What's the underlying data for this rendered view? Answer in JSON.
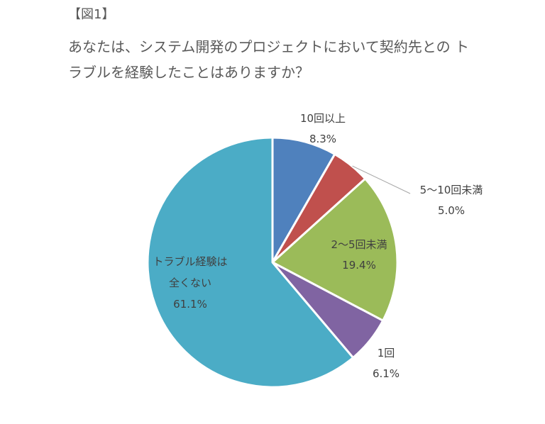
{
  "figure_label": "【図1】",
  "title_lines": [
    "あなたは、システム開発のプロジェクトにおいて契約先との ト",
    "ラブルを経験したことはありますか？"
  ],
  "chart_data": {
    "type": "pie",
    "start_angle_deg": 0,
    "direction": "clockwise",
    "slices": [
      {
        "name": "10回以上",
        "value": 8.3,
        "label": "8.3%",
        "color": "#4F81BD"
      },
      {
        "name": "5～10回未満",
        "value": 5.0,
        "label": "5.0%",
        "color": "#C0504D"
      },
      {
        "name": "2～5回未満",
        "value": 19.4,
        "label": "19.4%",
        "color": "#9BBB59"
      },
      {
        "name": "1回",
        "value": 6.1,
        "label": "6.1%",
        "color": "#8064A2"
      },
      {
        "name": "トラブル経験は全くない",
        "name_lines": [
          "トラブル経験は",
          "全くない"
        ],
        "value": 61.1,
        "label": "61.1%",
        "color": "#4BACC6"
      }
    ]
  }
}
